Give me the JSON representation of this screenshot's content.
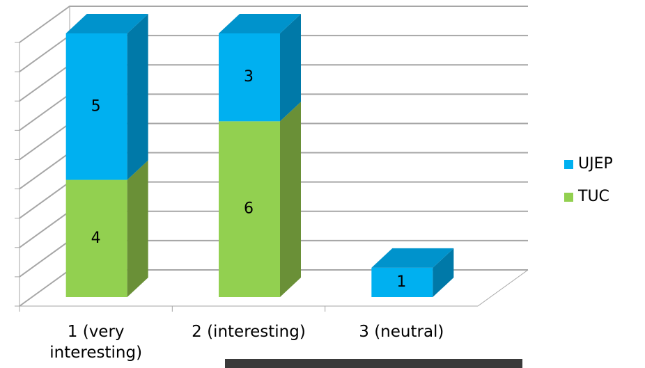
{
  "chart_data": {
    "type": "bar3d_stacked",
    "categories": [
      "1 (very interesting)",
      "2 (interesting)",
      "3 (neutral)"
    ],
    "series": [
      {
        "name": "TUC",
        "color": "#92d050",
        "side": "#6a9037",
        "values": [
          4,
          6,
          null
        ]
      },
      {
        "name": "UJEP",
        "color": "#00b0f0",
        "side": "#0079a8",
        "top": "#0093cc",
        "values": [
          5,
          3,
          1
        ]
      }
    ],
    "ylim": [
      0,
      9
    ],
    "yticks": [
      0,
      1,
      2,
      3,
      4,
      5,
      6,
      7,
      8,
      9
    ],
    "grid": true,
    "legend": "right"
  }
}
